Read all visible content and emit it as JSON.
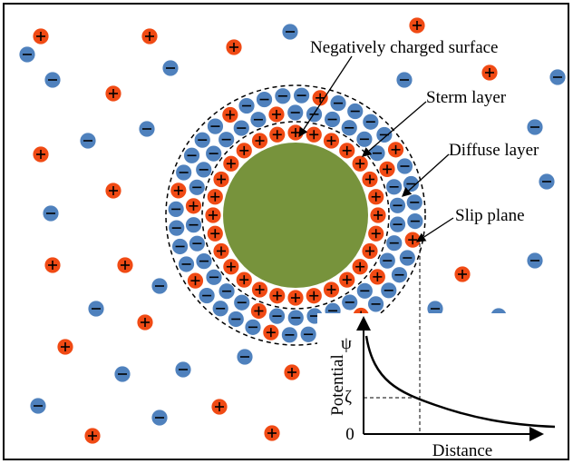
{
  "labels": {
    "surface": "Negatively charged surface",
    "stern": "Sterm layer",
    "diffuse": "Diffuse layer",
    "slip": "Slip plane"
  },
  "graph": {
    "psi": "ψ",
    "zeta": "ζ",
    "zero": "0",
    "y_label": "Potential",
    "x_label": "Distance"
  }
}
